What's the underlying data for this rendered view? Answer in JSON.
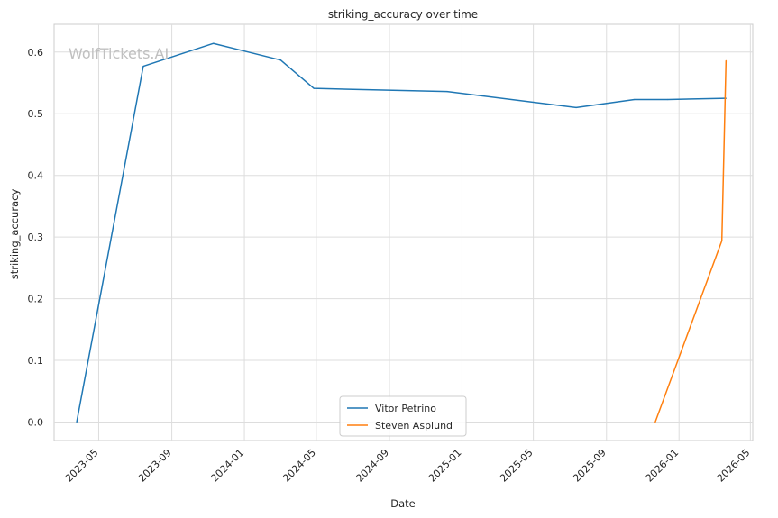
{
  "chart_data": {
    "type": "line",
    "title": "striking_accuracy over time",
    "xlabel": "Date",
    "ylabel": "striking_accuracy",
    "watermark": "WolfTickets.AI",
    "x_ticks": [
      "2023-05",
      "2023-09",
      "2024-01",
      "2024-05",
      "2024-09",
      "2025-01",
      "2025-05",
      "2025-09",
      "2026-01",
      "2026-05"
    ],
    "y_ticks": [
      "0.0",
      "0.1",
      "0.2",
      "0.3",
      "0.4",
      "0.5",
      "0.6"
    ],
    "xlim": [
      "2023-02-15",
      "2026-05-05"
    ],
    "ylim": [
      -0.03,
      0.645
    ],
    "grid": true,
    "legend_position": "bottom-center",
    "series": [
      {
        "name": "Vitor Petrino",
        "color": "#1f77b4",
        "x": [
          "2023-03-25",
          "2023-07-15",
          "2023-11-10",
          "2024-03-02",
          "2024-04-27",
          "2024-12-07",
          "2025-07-12",
          "2025-10-18",
          "2025-12-13",
          "2026-03-21"
        ],
        "y": [
          0.0,
          0.577,
          0.614,
          0.587,
          0.541,
          0.536,
          0.51,
          0.523,
          0.523,
          0.525
        ]
      },
      {
        "name": "Steven Asplund",
        "color": "#ff7f0e",
        "x": [
          "2025-11-22",
          "2026-03-14",
          "2026-03-21"
        ],
        "y": [
          0.0,
          0.294,
          0.586
        ]
      }
    ]
  }
}
